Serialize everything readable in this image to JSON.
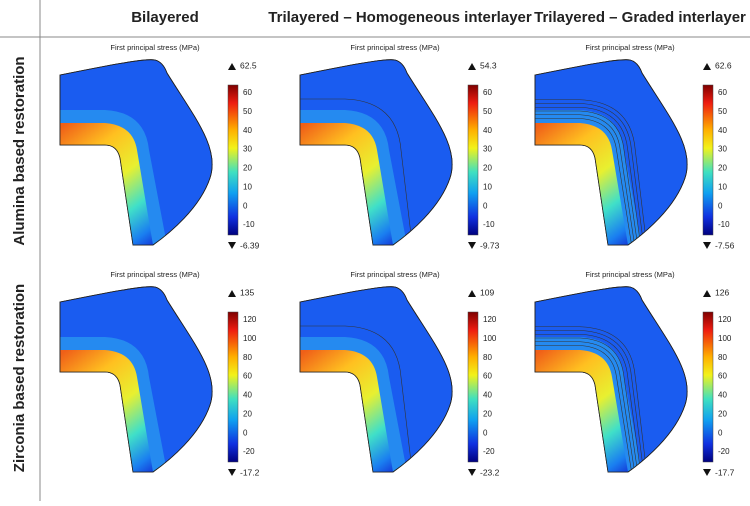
{
  "columns": [
    "Bilayered",
    "Trilayered – Homogeneous interlayer",
    "Trilayered – Graded interlayer"
  ],
  "rows": [
    {
      "label": "Alumina based restoration",
      "colorbar_ticks": [
        60,
        50,
        40,
        30,
        20,
        10,
        0,
        -10
      ],
      "panels": [
        {
          "title": "First principal stress (MPa)",
          "max": 62.5,
          "min": -6.39
        },
        {
          "title": "First principal stress (MPa)",
          "max": 54.3,
          "min": -9.73
        },
        {
          "title": "First principal stress (MPa)",
          "max": 62.6,
          "min": -7.56
        }
      ]
    },
    {
      "label": "Zirconia based restoration",
      "colorbar_ticks": [
        120,
        100,
        80,
        60,
        40,
        20,
        0,
        -20
      ],
      "panels": [
        {
          "title": "First principal stress (MPa)",
          "max": 135,
          "min": -17.2
        },
        {
          "title": "First principal stress (MPa)",
          "max": 109,
          "min": -23.2
        },
        {
          "title": "First principal stress (MPa)",
          "max": 126,
          "min": -17.7
        }
      ]
    }
  ]
}
